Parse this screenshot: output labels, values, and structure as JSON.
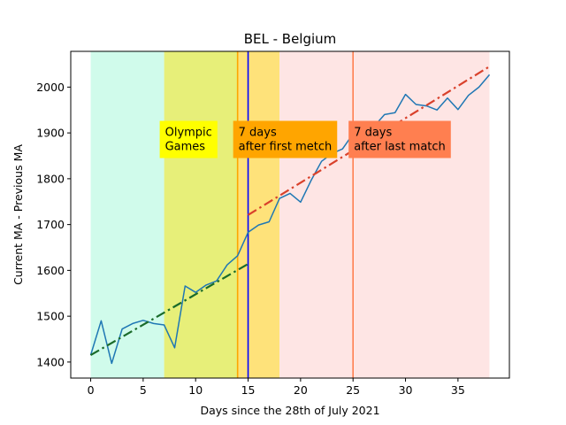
{
  "chart_data": {
    "type": "line",
    "title": "BEL - Belgium",
    "xlabel": "Days since the 28th of July 2021",
    "ylabel": "Current MA - Previous MA",
    "xlim": [
      -1.9,
      39.9
    ],
    "ylim": [
      1365,
      2078
    ],
    "x_ticks": [
      0,
      5,
      10,
      15,
      20,
      25,
      30,
      35
    ],
    "y_ticks": [
      1400,
      1500,
      1600,
      1700,
      1800,
      1900,
      2000
    ],
    "grid": false,
    "legend": "none",
    "bands": [
      {
        "x0": 0,
        "x1": 7,
        "color": "#d0fbeb"
      },
      {
        "x0": 7,
        "x1": 14,
        "color": "#e7ef79"
      },
      {
        "x0": 14,
        "x1": 18,
        "color": "#fee27a"
      },
      {
        "x0": 18,
        "x1": 38,
        "color": "#fee5e4"
      }
    ],
    "vlines": [
      {
        "x": 14,
        "color": "#ffa500"
      },
      {
        "x": 15,
        "color": "#0000ff"
      },
      {
        "x": 25,
        "color": "#ff7f50"
      }
    ],
    "series": [
      {
        "color": "#1f77b4",
        "style": "solid",
        "x": [
          0,
          1,
          2,
          3,
          4,
          5,
          6,
          7,
          8,
          9,
          10,
          11,
          12,
          13,
          14,
          15,
          16,
          17,
          18,
          19,
          20,
          21,
          22,
          23,
          24,
          25,
          26,
          27,
          28,
          29,
          30,
          31,
          32,
          33,
          34,
          35,
          36,
          37,
          38
        ],
        "values": [
          1415,
          1490,
          1397,
          1472,
          1484,
          1491,
          1484,
          1481,
          1431,
          1566,
          1552,
          1568,
          1577,
          1612,
          1632,
          1683,
          1699,
          1706,
          1757,
          1768,
          1749,
          1796,
          1838,
          1855,
          1865,
          1898,
          1910,
          1914,
          1940,
          1944,
          1984,
          1962,
          1959,
          1950,
          1976,
          1951,
          1982,
          2000,
          2027
        ]
      },
      {
        "color": "#1a6b2a",
        "style": "dashdot",
        "x": [
          0,
          15
        ],
        "values": [
          1415,
          1614
        ]
      },
      {
        "color": "#d9412b",
        "style": "dashdot",
        "x": [
          15,
          38
        ],
        "values": [
          1721,
          2045
        ]
      }
    ],
    "annotations": [
      {
        "lines": [
          "Olympic",
          "Games"
        ],
        "bg": "#ffff00",
        "x": 7,
        "y": 1878
      },
      {
        "lines": [
          "7 days",
          "after first metch"
        ],
        "bg": "#ffa500",
        "x": 14,
        "y": 1878
      },
      {
        "lines": [
          "7 days",
          "after last match"
        ],
        "bg": "#ff7f50",
        "x": 25,
        "y": 1878
      }
    ]
  }
}
